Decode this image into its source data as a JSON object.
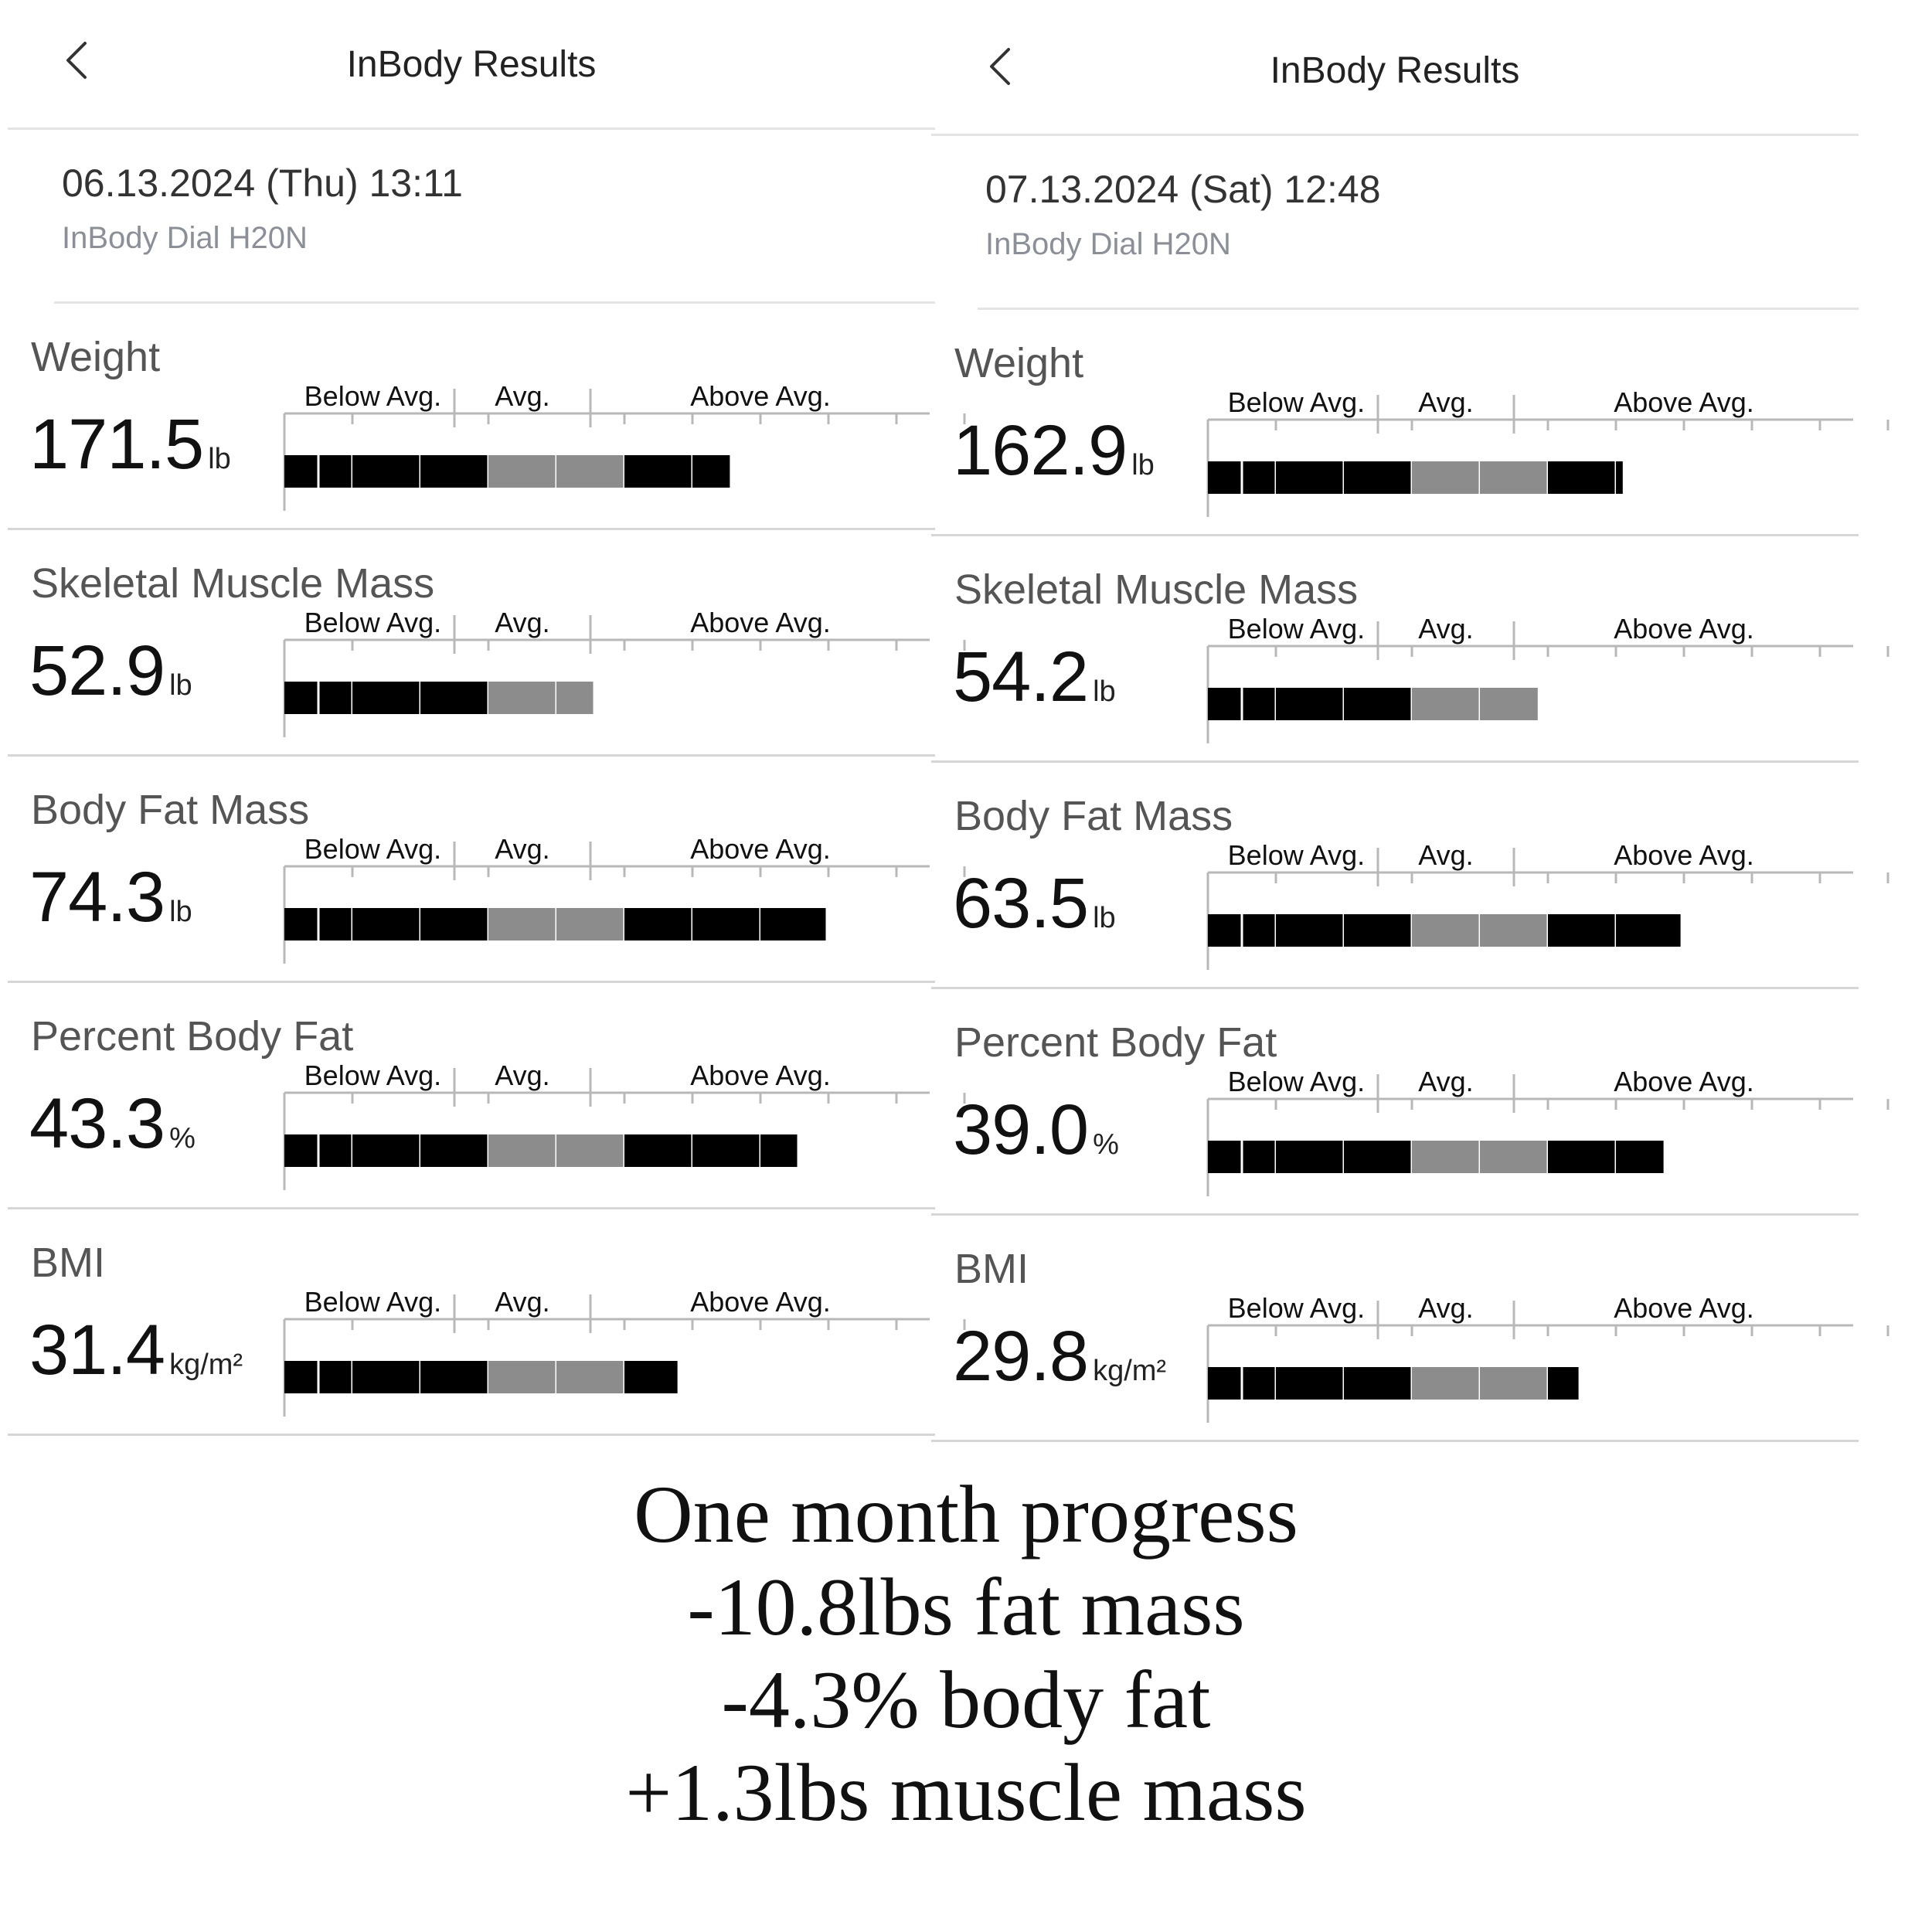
{
  "panels": [
    {
      "title": "InBody Results",
      "date": "06.13.2024 (Thu) 13:11",
      "device": "InBody Dial H20N",
      "metrics": [
        {
          "name": "Weight",
          "value": "171.5",
          "unit": "lb",
          "level": 6.55
        },
        {
          "name": "Skeletal Muscle Mass",
          "value": "52.9",
          "unit": "lb",
          "level": 4.54
        },
        {
          "name": "Body Fat Mass",
          "value": "74.3",
          "unit": "lb",
          "level": 7.96
        },
        {
          "name": "Percent Body Fat",
          "value": "43.3",
          "unit": "%",
          "level": 7.54
        },
        {
          "name": "BMI",
          "value": "31.4",
          "unit": "kg/m²",
          "level": 5.78
        }
      ]
    },
    {
      "title": "InBody Results",
      "date": "07.13.2024 (Sat) 12:48",
      "device": "InBody Dial H20N",
      "metrics": [
        {
          "name": "Weight",
          "value": "162.9",
          "unit": "lb",
          "level": 6.1
        },
        {
          "name": "Skeletal Muscle Mass",
          "value": "54.2",
          "unit": "lb",
          "level": 4.85
        },
        {
          "name": "Body Fat Mass",
          "value": "63.5",
          "unit": "lb",
          "level": 6.95
        },
        {
          "name": "Percent Body Fat",
          "value": "39.0",
          "unit": "%",
          "level": 6.7
        },
        {
          "name": "BMI",
          "value": "29.8",
          "unit": "kg/m²",
          "level": 5.45
        }
      ]
    }
  ],
  "scale_labels": {
    "below": "Below Avg.",
    "avg": "Avg.",
    "above": "Above Avg."
  },
  "caption": {
    "line1": "One month progress",
    "line2": "-10.8lbs fat mass",
    "line3": "-4.3% body fat",
    "line4": "+1.3lbs muscle mass"
  },
  "colors": {
    "bar_dark": "#000000",
    "bar_avg": "#8c8c8c",
    "axis": "#b8b8b8",
    "divider": "#d6d6d6"
  }
}
